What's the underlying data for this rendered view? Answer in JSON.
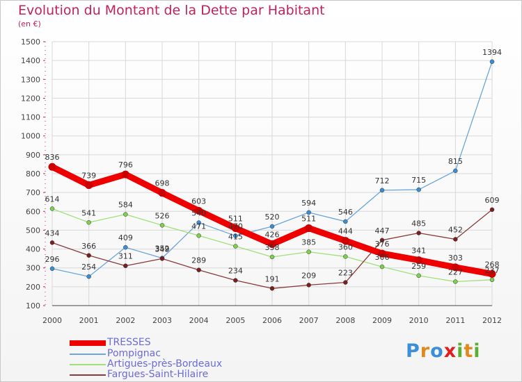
{
  "title": "Evolution du Montant de la Dette par Habitant",
  "subtitle": "(en €)",
  "logo": {
    "text": "Proxiti",
    "letters": [
      "P",
      "r",
      "o",
      "x",
      "i",
      "t",
      "i"
    ],
    "colors": [
      "#3a8fd6",
      "#e08a1e",
      "#3a8fd6",
      "#e02020",
      "#58b030",
      "#e08a1e",
      "#58b030"
    ]
  },
  "chart_data": {
    "type": "line",
    "x": [
      "2000",
      "2001",
      "2002",
      "2003",
      "2004",
      "2005",
      "2006",
      "2007",
      "2008",
      "2009",
      "2010",
      "2011",
      "2012"
    ],
    "ylim": [
      100,
      1500
    ],
    "yticks": [
      100,
      200,
      300,
      400,
      500,
      600,
      700,
      800,
      900,
      1000,
      1100,
      1200,
      1300,
      1400,
      1500
    ],
    "grid": true,
    "legend_position": "bottom-left",
    "series": [
      {
        "name": "TRESSES",
        "color": "#ee0000",
        "width": 9,
        "marker": "#cc0000",
        "values": [
          836,
          739,
          796,
          698,
          603,
          511,
          426,
          511,
          444,
          376,
          341,
          303,
          268
        ],
        "labels": [
          "836",
          "739",
          "796",
          "698",
          "603",
          "511",
          "426",
          "511",
          "444",
          "376",
          "341",
          "303",
          "268"
        ]
      },
      {
        "name": "Pompignac",
        "color": "#6aa6da",
        "width": 1.3,
        "marker": "#3b8ed4",
        "values": [
          296,
          254,
          409,
          352,
          540,
          470,
          520,
          594,
          546,
          712,
          715,
          815,
          1394
        ],
        "labels": [
          "296",
          "254",
          "409",
          "352",
          "540",
          "470",
          "520",
          "594",
          "546",
          "712",
          "715",
          "815",
          "1394"
        ]
      },
      {
        "name": "Artigues-près-Bordeaux",
        "color": "#9fe07a",
        "width": 1.3,
        "marker": "#7fcf4f",
        "values": [
          614,
          541,
          584,
          526,
          471,
          415,
          358,
          385,
          360,
          306,
          259,
          227,
          237
        ],
        "labels": [
          "614",
          "541",
          "584",
          "526",
          "471",
          "415",
          "358",
          "385",
          "360",
          "306",
          "259",
          "227",
          "237"
        ]
      },
      {
        "name": "Fargues-Saint-Hilaire",
        "color": "#8a3a3a",
        "width": 1.3,
        "marker": "#7a1f1f",
        "values": [
          434,
          366,
          311,
          349,
          289,
          234,
          191,
          209,
          223,
          447,
          485,
          452,
          609
        ],
        "labels": [
          "434",
          "366",
          "311",
          "349",
          "289",
          "234",
          "191",
          "209",
          "223",
          "447",
          "485",
          "452",
          "609"
        ]
      }
    ]
  }
}
